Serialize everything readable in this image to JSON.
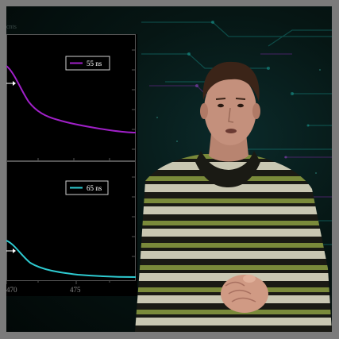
{
  "top_panel": {
    "legend_label": "55 ns",
    "legend_color": "#a020c8",
    "faint_corner_text": "cnts"
  },
  "bottom_panel": {
    "legend_label": "65 ns",
    "legend_color": "#2ecad0",
    "x_ticks": [
      "470",
      "475"
    ]
  },
  "colors": {
    "background_dark": "#020807",
    "circuit_cyan": "#1aa8a0",
    "circuit_purple": "#7a2aa0",
    "frame_gray": "#7b7b7b"
  }
}
